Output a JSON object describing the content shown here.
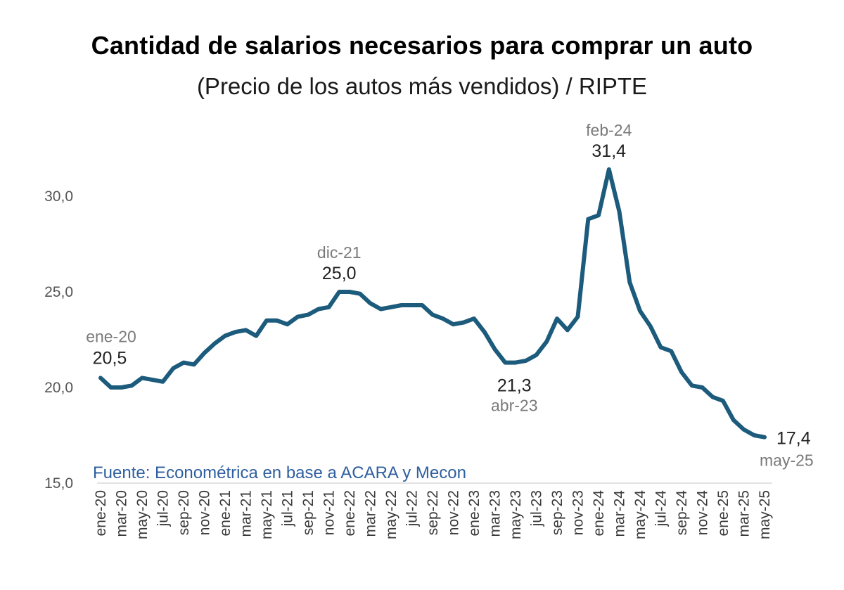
{
  "chart_data": {
    "type": "line",
    "title": "Cantidad de salarios necesarios para comprar un auto",
    "subtitle": "(Precio de los autos más vendidos) / RIPTE",
    "source": "Fuente: Econométrica en base a ACARA y Mecon",
    "ylim": [
      15,
      32
    ],
    "yticks": [
      "15,0",
      "20,0",
      "25,0",
      "30,0"
    ],
    "ytick_values": [
      15,
      20,
      25,
      30
    ],
    "grid": false,
    "colors": {
      "line": "#1c5b7c",
      "source": "#2e5f9e"
    },
    "x_tick_labels": [
      "ene-20",
      "mar-20",
      "may-20",
      "jul-20",
      "sep-20",
      "nov-20",
      "ene-21",
      "mar-21",
      "may-21",
      "jul-21",
      "sep-21",
      "nov-21",
      "ene-22",
      "mar-22",
      "may-22",
      "jul-22",
      "sep-22",
      "nov-22",
      "ene-23",
      "mar-23",
      "may-23",
      "jul-23",
      "sep-23",
      "nov-23",
      "ene-24",
      "mar-24",
      "may-24",
      "jul-24",
      "sep-24",
      "nov-24",
      "ene-25",
      "mar-25",
      "may-25"
    ],
    "series": [
      {
        "values": [
          20.5,
          20.0,
          20.0,
          20.1,
          20.5,
          20.4,
          20.3,
          21.0,
          21.3,
          21.2,
          21.8,
          22.3,
          22.7,
          22.9,
          23.0,
          22.7,
          23.5,
          23.5,
          23.3,
          23.7,
          23.8,
          24.1,
          24.2,
          25.0,
          25.0,
          24.9,
          24.4,
          24.1,
          24.2,
          24.3,
          24.3,
          24.3,
          23.8,
          23.6,
          23.3,
          23.4,
          23.6,
          22.9,
          22.0,
          21.3,
          21.3,
          21.4,
          21.7,
          22.4,
          23.6,
          23.0,
          23.7,
          28.8,
          29.0,
          31.4,
          29.2,
          25.5,
          24.0,
          23.2,
          22.1,
          21.9,
          20.8,
          20.1,
          20.0,
          19.5,
          19.3,
          18.3,
          17.8,
          17.5,
          17.4
        ]
      }
    ],
    "annotations": [
      {
        "index": 0,
        "date": "ene-20",
        "value": "20,5",
        "position": "above"
      },
      {
        "index": 23,
        "date": "dic-21",
        "value": "25,0",
        "position": "above"
      },
      {
        "index": 39,
        "date": "abr-23",
        "value": "21,3",
        "position": "below"
      },
      {
        "index": 49,
        "date": "feb-24",
        "value": "31,4",
        "position": "above"
      },
      {
        "index": 64,
        "date": "may-25",
        "value": "17,4",
        "position": "right"
      }
    ]
  }
}
